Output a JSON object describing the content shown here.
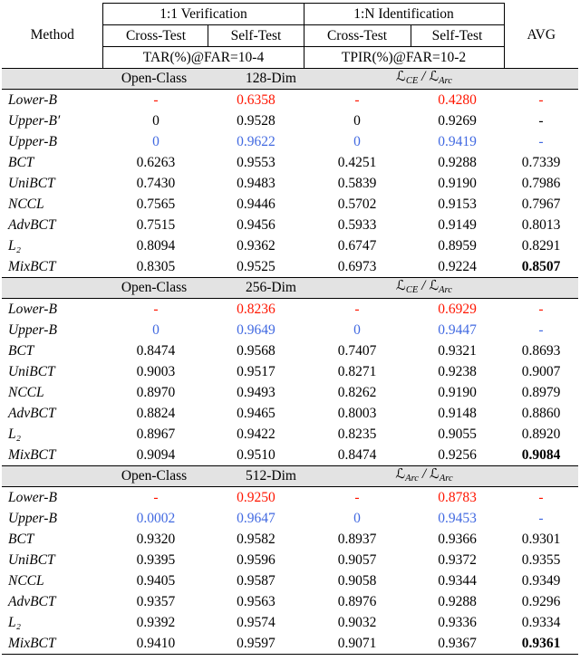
{
  "table": {
    "loss_symbol": "ℒ",
    "colors": {
      "red": "#ff1500",
      "blue": "#4169e1",
      "band_bg": "#e3e3e3"
    },
    "header": {
      "method": "Method",
      "avg": "AVG",
      "groups": [
        {
          "title": "1:1 Verification",
          "cols": [
            "Cross-Test",
            "Self-Test"
          ],
          "metric": "TAR(%)@FAR=10-4"
        },
        {
          "title": "1:N Identification",
          "cols": [
            "Cross-Test",
            "Self-Test"
          ],
          "metric": "TPIR(%)@FAR=10-2"
        }
      ]
    },
    "sections": [
      {
        "label": "Open-Class",
        "dim": "128-Dim",
        "loss": {
          "old": "CE",
          "new": "Arc"
        },
        "rows": [
          {
            "method": "Lower-B",
            "values": [
              "-",
              "0.6358",
              "-",
              "0.4280",
              "-"
            ],
            "color": "red"
          },
          {
            "method": "Upper-B′",
            "values": [
              "0",
              "0.9528",
              "0",
              "0.9269",
              "-"
            ],
            "color": null
          },
          {
            "method": "Upper-B",
            "values": [
              "0",
              "0.9622",
              "0",
              "0.9419",
              "-"
            ],
            "color": "blue"
          },
          {
            "method": "BCT",
            "values": [
              "0.6263",
              "0.9553",
              "0.4251",
              "0.9288",
              "0.7339"
            ],
            "color": null
          },
          {
            "method": "UniBCT",
            "values": [
              "0.7430",
              "0.9483",
              "0.5839",
              "0.9190",
              "0.7986"
            ],
            "color": null
          },
          {
            "method": "NCCL",
            "values": [
              "0.7565",
              "0.9446",
              "0.5702",
              "0.9153",
              "0.7967"
            ],
            "color": null
          },
          {
            "method": "AdvBCT",
            "values": [
              "0.7515",
              "0.9456",
              "0.5933",
              "0.9149",
              "0.8013"
            ],
            "color": null
          },
          {
            "method": "L₂",
            "values": [
              "0.8094",
              "0.9362",
              "0.6747",
              "0.8959",
              "0.8291"
            ],
            "color": null
          },
          {
            "method": "MixBCT",
            "values": [
              "0.8305",
              "0.9525",
              "0.6973",
              "0.9224",
              "0.8507"
            ],
            "color": null,
            "bold_avg": true
          }
        ]
      },
      {
        "label": "Open-Class",
        "dim": "256-Dim",
        "loss": {
          "old": "CE",
          "new": "Arc"
        },
        "rows": [
          {
            "method": "Lower-B",
            "values": [
              "-",
              "0.8236",
              "-",
              "0.6929",
              "-"
            ],
            "color": "red"
          },
          {
            "method": "Upper-B",
            "values": [
              "0",
              "0.9649",
              "0",
              "0.9447",
              "-"
            ],
            "color": "blue"
          },
          {
            "method": "BCT",
            "values": [
              "0.8474",
              "0.9568",
              "0.7407",
              "0.9321",
              "0.8693"
            ],
            "color": null
          },
          {
            "method": "UniBCT",
            "values": [
              "0.9003",
              "0.9517",
              "0.8271",
              "0.9238",
              "0.9007"
            ],
            "color": null
          },
          {
            "method": "NCCL",
            "values": [
              "0.8970",
              "0.9493",
              "0.8262",
              "0.9190",
              "0.8979"
            ],
            "color": null
          },
          {
            "method": "AdvBCT",
            "values": [
              "0.8824",
              "0.9465",
              "0.8003",
              "0.9148",
              "0.8860"
            ],
            "color": null
          },
          {
            "method": "L₂",
            "values": [
              "0.8967",
              "0.9422",
              "0.8235",
              "0.9055",
              "0.8920"
            ],
            "color": null
          },
          {
            "method": "MixBCT",
            "values": [
              "0.9094",
              "0.9510",
              "0.8474",
              "0.9256",
              "0.9084"
            ],
            "color": null,
            "bold_avg": true
          }
        ]
      },
      {
        "label": "Open-Class",
        "dim": "512-Dim",
        "loss": {
          "old": "Arc",
          "new": "Arc"
        },
        "rows": [
          {
            "method": "Lower-B",
            "values": [
              "-",
              "0.9250",
              "-",
              "0.8783",
              "-"
            ],
            "color": "red"
          },
          {
            "method": "Upper-B",
            "values": [
              "0.0002",
              "0.9647",
              "0",
              "0.9453",
              "-"
            ],
            "color": "blue"
          },
          {
            "method": "BCT",
            "values": [
              "0.9320",
              "0.9582",
              "0.8937",
              "0.9366",
              "0.9301"
            ],
            "color": null
          },
          {
            "method": "UniBCT",
            "values": [
              "0.9395",
              "0.9596",
              "0.9057",
              "0.9372",
              "0.9355"
            ],
            "color": null
          },
          {
            "method": "NCCL",
            "values": [
              "0.9405",
              "0.9587",
              "0.9058",
              "0.9344",
              "0.9349"
            ],
            "color": null
          },
          {
            "method": "AdvBCT",
            "values": [
              "0.9357",
              "0.9563",
              "0.8976",
              "0.9288",
              "0.9296"
            ],
            "color": null
          },
          {
            "method": "L₂",
            "values": [
              "0.9392",
              "0.9574",
              "0.9032",
              "0.9336",
              "0.9334"
            ],
            "color": null
          },
          {
            "method": "MixBCT",
            "values": [
              "0.9410",
              "0.9597",
              "0.9071",
              "0.9367",
              "0.9361"
            ],
            "color": null,
            "bold_avg": true
          }
        ]
      }
    ]
  }
}
